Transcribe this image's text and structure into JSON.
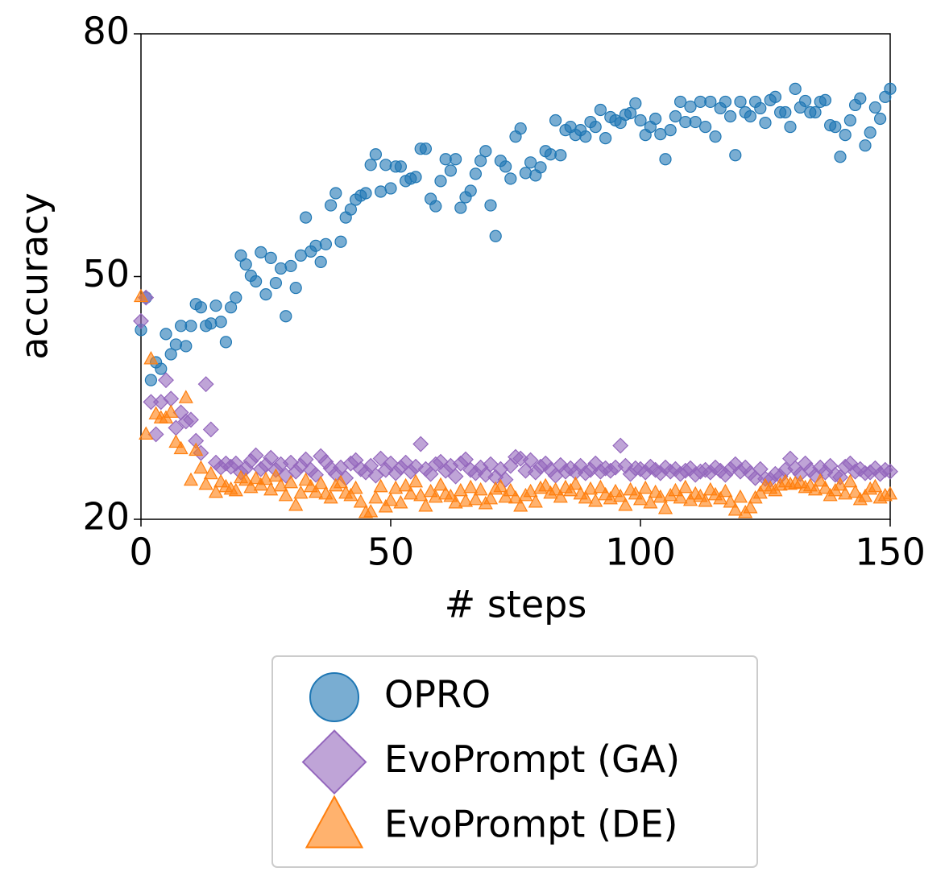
{
  "chart_data": {
    "type": "scatter",
    "x_label": "# steps",
    "y_label": "accuracy",
    "xlim": [
      0,
      150
    ],
    "ylim": [
      20,
      80
    ],
    "xticks": [
      0,
      50,
      100,
      150
    ],
    "yticks": [
      20,
      50,
      80
    ],
    "grid": false,
    "legend_position": "below",
    "x": [
      0,
      1,
      2,
      3,
      4,
      5,
      6,
      7,
      8,
      9,
      10,
      11,
      12,
      13,
      14,
      15,
      16,
      17,
      18,
      19,
      20,
      21,
      22,
      23,
      24,
      25,
      26,
      27,
      28,
      29,
      30,
      31,
      32,
      33,
      34,
      35,
      36,
      37,
      38,
      39,
      40,
      41,
      42,
      43,
      44,
      45,
      46,
      47,
      48,
      49,
      50,
      51,
      52,
      53,
      54,
      55,
      56,
      57,
      58,
      59,
      60,
      61,
      62,
      63,
      64,
      65,
      66,
      67,
      68,
      69,
      70,
      71,
      72,
      73,
      74,
      75,
      76,
      77,
      78,
      79,
      80,
      81,
      82,
      83,
      84,
      85,
      86,
      87,
      88,
      89,
      90,
      91,
      92,
      93,
      94,
      95,
      96,
      97,
      98,
      99,
      100,
      101,
      102,
      103,
      104,
      105,
      106,
      107,
      108,
      109,
      110,
      111,
      112,
      113,
      114,
      115,
      116,
      117,
      118,
      119,
      120,
      121,
      122,
      123,
      124,
      125,
      126,
      127,
      128,
      129,
      130,
      131,
      132,
      133,
      134,
      135,
      136,
      137,
      138,
      139,
      140,
      141,
      142,
      143,
      144,
      145,
      146,
      147,
      148,
      149,
      150
    ],
    "series": [
      {
        "name": "OPRO",
        "color": "#1f77b4",
        "marker": "circle",
        "values": [
          43.4,
          47.4,
          37.2,
          39.4,
          38.6,
          42.9,
          40.4,
          41.6,
          43.9,
          41.4,
          43.9,
          46.6,
          46.2,
          43.9,
          44.2,
          46.4,
          44.4,
          41.9,
          46.2,
          47.4,
          52.6,
          51.5,
          50.1,
          49.4,
          53.0,
          47.8,
          52.3,
          49.2,
          51.0,
          45.1,
          51.3,
          48.6,
          52.6,
          57.3,
          53.1,
          53.8,
          51.8,
          54.0,
          58.8,
          60.3,
          54.3,
          57.3,
          58.3,
          59.5,
          60.0,
          60.3,
          63.8,
          65.1,
          60.5,
          63.8,
          60.9,
          63.6,
          63.6,
          61.8,
          62.1,
          62.3,
          65.8,
          65.8,
          59.6,
          58.7,
          61.8,
          64.5,
          63.1,
          64.5,
          58.5,
          59.8,
          60.6,
          62.7,
          64.3,
          65.5,
          58.8,
          55.0,
          64.3,
          63.6,
          62.1,
          67.3,
          68.3,
          62.8,
          64.1,
          62.5,
          63.5,
          65.5,
          65.1,
          69.3,
          65.0,
          68.1,
          68.5,
          67.5,
          68.1,
          67.3,
          69.1,
          68.5,
          70.6,
          67.1,
          69.7,
          69.3,
          69.0,
          70.0,
          70.2,
          71.4,
          69.3,
          67.5,
          68.5,
          69.5,
          67.6,
          64.5,
          68.1,
          69.8,
          71.6,
          69.1,
          71.0,
          69.1,
          71.6,
          68.5,
          71.6,
          67.3,
          70.8,
          71.6,
          69.8,
          65.0,
          71.6,
          70.3,
          69.8,
          71.6,
          70.8,
          69.0,
          71.8,
          72.2,
          70.3,
          70.3,
          68.5,
          73.2,
          70.9,
          71.7,
          70.3,
          70.3,
          71.6,
          71.8,
          68.7,
          68.5,
          64.8,
          67.5,
          69.3,
          71.2,
          72.0,
          66.2,
          67.8,
          70.9,
          69.5,
          72.2,
          73.2
        ]
      },
      {
        "name": "EvoPrompt (GA)",
        "color": "#9467bd",
        "marker": "diamond",
        "values": [
          44.5,
          47.4,
          34.5,
          30.5,
          34.5,
          37.2,
          34.9,
          31.3,
          33.2,
          32.1,
          32.3,
          29.7,
          28.2,
          36.7,
          31.1,
          27.0,
          26.4,
          26.9,
          26.5,
          26.9,
          25.8,
          26.3,
          27.2,
          27.9,
          26.2,
          26.7,
          27.6,
          26.1,
          26.8,
          25.4,
          27.0,
          25.9,
          26.6,
          27.4,
          26.1,
          25.5,
          27.8,
          27.1,
          26.3,
          25.6,
          26.4,
          25.1,
          26.9,
          27.3,
          26.2,
          25.8,
          26.6,
          25.4,
          27.5,
          26.1,
          26.9,
          25.7,
          26.4,
          27.0,
          25.9,
          26.5,
          29.3,
          26.2,
          25.6,
          26.8,
          27.1,
          26.0,
          26.6,
          25.3,
          26.9,
          27.4,
          26.1,
          25.7,
          26.4,
          25.5,
          26.8,
          25.2,
          26.2,
          24.9,
          26.6,
          27.7,
          27.5,
          26.0,
          27.3,
          25.8,
          26.5,
          26.9,
          26.1,
          25.4,
          26.7,
          25.9,
          26.3,
          25.8,
          26.6,
          25.7,
          26.1,
          26.9,
          25.9,
          26.3,
          26.0,
          26.4,
          29.1,
          26.6,
          25.6,
          26.3,
          26.2,
          25.8,
          26.5,
          26.1,
          25.7,
          26.4,
          25.9,
          26.2,
          25.6,
          26.0,
          26.3,
          25.5,
          25.9,
          26.1,
          25.8,
          26.4,
          26.0,
          25.5,
          26.2,
          26.8,
          25.9,
          26.4,
          25.7,
          25.1,
          26.2,
          25.0,
          24.9,
          25.6,
          25.3,
          26.1,
          27.5,
          26.3,
          25.6,
          26.9,
          26.1,
          25.4,
          26.4,
          25.8,
          26.6,
          25.5,
          25.2,
          26.5,
          26.9,
          25.9,
          26.2,
          25.7,
          25.8,
          26.3,
          25.6,
          26.1,
          25.9
        ]
      },
      {
        "name": "EvoPrompt (DE)",
        "color": "#ff7f0e",
        "marker": "triangle",
        "values": [
          47.5,
          30.5,
          39.8,
          33.0,
          32.5,
          32.5,
          33.2,
          29.5,
          28.7,
          35.0,
          24.8,
          28.5,
          26.3,
          24.3,
          25.6,
          23.3,
          24.6,
          24.0,
          23.7,
          23.5,
          25.1,
          24.8,
          23.9,
          25.0,
          24.2,
          24.9,
          23.6,
          25.3,
          24.1,
          22.9,
          24.5,
          21.7,
          23.2,
          24.8,
          24.0,
          23.3,
          24.4,
          23.1,
          22.6,
          24.1,
          24.5,
          23.2,
          22.9,
          23.8,
          22.1,
          20.8,
          20.9,
          22.6,
          24.0,
          21.5,
          22.3,
          23.8,
          22.0,
          24.1,
          23.1,
          24.6,
          22.9,
          21.6,
          23.4,
          22.7,
          24.2,
          23.1,
          22.8,
          22.0,
          23.5,
          22.2,
          23.9,
          22.4,
          23.6,
          21.9,
          22.5,
          23.7,
          24.0,
          22.7,
          23.5,
          22.6,
          21.6,
          22.9,
          23.4,
          22.1,
          23.8,
          24.1,
          23.2,
          23.6,
          22.7,
          23.9,
          23.5,
          24.3,
          23.1,
          22.6,
          23.7,
          22.2,
          23.9,
          23.0,
          22.5,
          23.4,
          22.8,
          21.7,
          23.6,
          23.1,
          22.4,
          23.8,
          22.0,
          23.3,
          22.7,
          21.3,
          22.9,
          23.5,
          22.6,
          23.9,
          22.3,
          23.1,
          22.8,
          22.2,
          23.6,
          23.0,
          22.5,
          23.4,
          22.1,
          21.1,
          22.7,
          20.8,
          21.4,
          22.6,
          23.2,
          24.1,
          23.8,
          23.5,
          24.2,
          24.6,
          24.3,
          24.4,
          24.5,
          23.9,
          24.1,
          23.6,
          24.7,
          23.8,
          22.9,
          23.5,
          24.2,
          23.1,
          24.6,
          23.3,
          22.4,
          22.8,
          23.7,
          24.0,
          22.6,
          22.9,
          23.1
        ]
      }
    ]
  }
}
